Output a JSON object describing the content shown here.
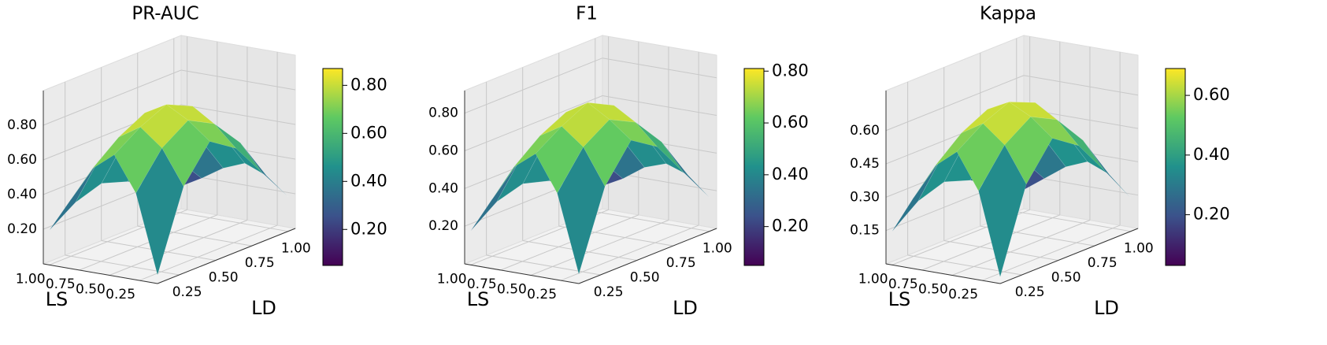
{
  "chart_data": [
    {
      "type": "surface",
      "title": "PR-AUC",
      "xlabel": "LD",
      "ylabel": "LS",
      "colormap": "viridis",
      "x": [
        0.1,
        0.28,
        0.46,
        0.64,
        0.82,
        1.0
      ],
      "y": [
        0.1,
        0.28,
        0.46,
        0.64,
        0.82,
        1.0
      ],
      "z": [
        [
          0.05,
          0.5,
          0.7,
          0.6,
          0.4,
          0.2
        ],
        [
          0.5,
          0.7,
          0.8,
          0.72,
          0.55,
          0.3
        ],
        [
          0.7,
          0.8,
          0.87,
          0.8,
          0.6,
          0.35
        ],
        [
          0.6,
          0.72,
          0.8,
          0.75,
          0.55,
          0.3
        ],
        [
          0.4,
          0.55,
          0.6,
          0.55,
          0.4,
          0.22
        ],
        [
          0.2,
          0.3,
          0.35,
          0.3,
          0.22,
          0.15
        ]
      ],
      "xlim": [
        0.1,
        1.05
      ],
      "ylim": [
        0.1,
        1.05
      ],
      "zlim": [
        0.0,
        1.0
      ],
      "xticks": [
        0.25,
        {
          "value": 0.5,
          "label": "0.50"
        },
        0.75,
        {
          "value": 1,
          "label": "1.00"
        }
      ],
      "yticks": [
        0.25,
        {
          "value": 0.5,
          "label": "0.50"
        },
        0.75,
        {
          "value": 1,
          "label": "1.00"
        }
      ],
      "zticks": [
        {
          "value": 0.2,
          "label": "0.20"
        },
        {
          "value": 0.4,
          "label": "0.40"
        },
        {
          "value": 0.6,
          "label": "0.60"
        },
        {
          "value": 0.8,
          "label": "0.80"
        }
      ],
      "clim": [
        0.05,
        0.87
      ],
      "cticks": [
        {
          "value": 0.2,
          "label": "0.20"
        },
        {
          "value": 0.4,
          "label": "0.40"
        },
        {
          "value": 0.6,
          "label": "0.60"
        },
        {
          "value": 0.8,
          "label": "0.80"
        }
      ]
    },
    {
      "type": "surface",
      "title": "F1",
      "xlabel": "LD",
      "ylabel": "LS",
      "colormap": "viridis",
      "x": [
        0.1,
        0.28,
        0.46,
        0.64,
        0.82,
        1.0
      ],
      "y": [
        0.1,
        0.28,
        0.46,
        0.64,
        0.82,
        1.0
      ],
      "z": [
        [
          0.05,
          0.46,
          0.65,
          0.56,
          0.37,
          0.18
        ],
        [
          0.46,
          0.65,
          0.74,
          0.67,
          0.51,
          0.28
        ],
        [
          0.65,
          0.74,
          0.81,
          0.74,
          0.56,
          0.32
        ],
        [
          0.56,
          0.67,
          0.74,
          0.7,
          0.51,
          0.28
        ],
        [
          0.37,
          0.51,
          0.56,
          0.51,
          0.37,
          0.2
        ],
        [
          0.18,
          0.28,
          0.32,
          0.28,
          0.2,
          0.14
        ]
      ],
      "xlim": [
        0.1,
        1.05
      ],
      "ylim": [
        0.1,
        1.05
      ],
      "zlim": [
        0.0,
        0.92
      ],
      "xticks": [
        0.25,
        {
          "value": 0.5,
          "label": "0.50"
        },
        0.75,
        {
          "value": 1,
          "label": "1.00"
        }
      ],
      "yticks": [
        0.25,
        {
          "value": 0.5,
          "label": "0.50"
        },
        0.75,
        {
          "value": 1,
          "label": "1.00"
        }
      ],
      "zticks": [
        {
          "value": 0.2,
          "label": "0.20"
        },
        {
          "value": 0.4,
          "label": "0.40"
        },
        {
          "value": 0.6,
          "label": "0.60"
        },
        {
          "value": 0.8,
          "label": "0.80"
        }
      ],
      "clim": [
        0.05,
        0.81
      ],
      "cticks": [
        {
          "value": 0.2,
          "label": "0.20"
        },
        {
          "value": 0.4,
          "label": "0.40"
        },
        {
          "value": 0.6,
          "label": "0.60"
        },
        {
          "value": 0.8,
          "label": "0.80"
        }
      ]
    },
    {
      "type": "surface",
      "title": "Kappa",
      "xlabel": "LD",
      "ylabel": "LS",
      "colormap": "viridis",
      "x": [
        0.1,
        0.28,
        0.46,
        0.64,
        0.82,
        1.0
      ],
      "y": [
        0.1,
        0.28,
        0.46,
        0.64,
        0.82,
        1.0
      ],
      "z": [
        [
          0.03,
          0.4,
          0.56,
          0.48,
          0.32,
          0.15
        ],
        [
          0.4,
          0.56,
          0.64,
          0.58,
          0.44,
          0.24
        ],
        [
          0.56,
          0.64,
          0.69,
          0.64,
          0.48,
          0.28
        ],
        [
          0.48,
          0.58,
          0.64,
          0.6,
          0.44,
          0.24
        ],
        [
          0.32,
          0.44,
          0.48,
          0.44,
          0.32,
          0.17
        ],
        [
          0.15,
          0.24,
          0.28,
          0.24,
          0.17,
          0.1
        ]
      ],
      "xlim": [
        0.1,
        1.05
      ],
      "ylim": [
        0.1,
        1.05
      ],
      "zlim": [
        0.0,
        0.78
      ],
      "xticks": [
        0.25,
        {
          "value": 0.5,
          "label": "0.50"
        },
        0.75,
        {
          "value": 1,
          "label": "1.00"
        }
      ],
      "yticks": [
        0.25,
        {
          "value": 0.5,
          "label": "0.50"
        },
        0.75,
        {
          "value": 1,
          "label": "1.00"
        }
      ],
      "zticks": [
        0.15,
        {
          "value": 0.3,
          "label": "0.30"
        },
        0.45,
        {
          "value": 0.6,
          "label": "0.60"
        }
      ],
      "clim": [
        0.03,
        0.69
      ],
      "cticks": [
        {
          "value": 0.2,
          "label": "0.20"
        },
        {
          "value": 0.4,
          "label": "0.40"
        },
        {
          "value": 0.6,
          "label": "0.60"
        }
      ]
    }
  ]
}
